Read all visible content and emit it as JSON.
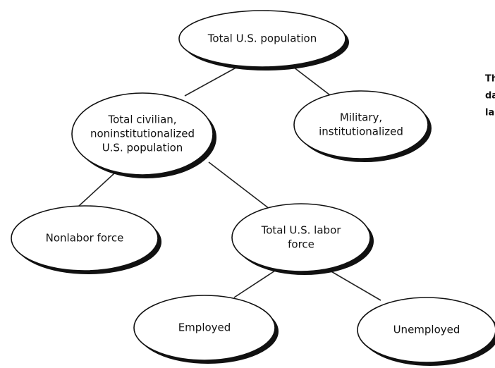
{
  "nodes": [
    {
      "lines": [
        "Total U.S. population"
      ]
    },
    {
      "lines": [
        "Total civilian,",
        "noninstitutionalized",
        "U.S. population"
      ]
    },
    {
      "lines": [
        "Military,",
        "institutionalized"
      ]
    },
    {
      "lines": [
        "Nonlabor force"
      ]
    },
    {
      "lines": [
        "Total U.S. labor",
        "force"
      ]
    },
    {
      "lines": [
        "Employed"
      ]
    },
    {
      "lines": [
        "Unemployed"
      ]
    }
  ],
  "side_text": [
    "Th",
    "da",
    "la"
  ]
}
